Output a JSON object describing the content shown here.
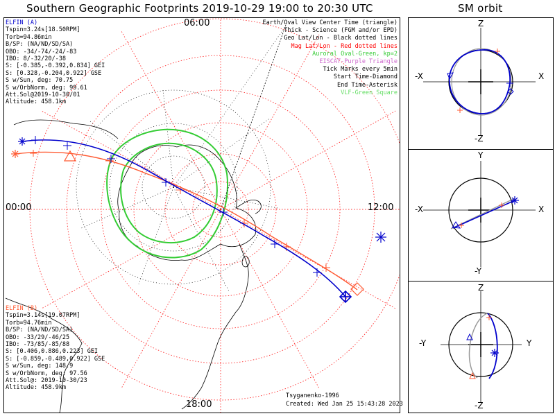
{
  "title": "Southern Geographic Footprints 2019-10-29 19:00 to 20:30 UTC",
  "orbit_title": "SM orbit",
  "time_labels": {
    "top": "06:00",
    "left": "00:00",
    "right": "12:00",
    "bottom": "18:00"
  },
  "elfin_a": {
    "name": "ELFIN (A)",
    "color": "#0000cc",
    "lines": [
      "Tspin=3.24s[18.50RPM]",
      "Torb=94.86min",
      "B/SP: (NA/ND/SD/SA)",
      "OBO: -34/-74/-24/-83",
      "IBO: 8/-32/20/-38",
      "S: [-0.385,-0.392,0.834] GEI",
      "S: [0.328,-0.204,0.922] GSE",
      "S w/Sun, deg: 70.75",
      "S w/OrbNorm, deg: 99.61",
      "Att.Sol@2019-10-30/01",
      "Altitude: 458.1km"
    ]
  },
  "elfin_b": {
    "name": "ELFIN (B)",
    "color": "#ff5a32",
    "lines": [
      "Tspin=3.14s[19.07RPM]",
      "Torb=94.76min",
      "B/SP: (NA/ND/SD/SA)",
      "OBO: -33/29/-46/25",
      "IBO: -73/85/-85/88",
      "S: [0.406,0.886,0.223] GEI",
      "S: [-0.859,-0.489,0.922] GSE",
      "S w/Sun, deg: 148.9",
      "S w/OrbNorm, deg: 97.56",
      "Att.Sol@: 2019-10-30/23",
      "Altitude: 458.9km"
    ]
  },
  "legend": [
    {
      "text": "Earth/Oval View Center Time (triangle)",
      "color": "#000000"
    },
    {
      "text": "Thick - Science (FGM and/or EPD)",
      "color": "#000000"
    },
    {
      "text": "Geo Lat/Lon - Black dotted lines",
      "color": "#000000"
    },
    {
      "text": "Mag Lat/Lon - Red dotted lines",
      "color": "#ff0000"
    },
    {
      "text": "Auroral Oval-Green, kp=2",
      "color": "#33cc33"
    },
    {
      "text": "EISCAT-Purple Triangle",
      "color": "#cc66cc"
    },
    {
      "text": "Tick Marks every 5min",
      "color": "#000000"
    },
    {
      "text": "Start Time-Diamond",
      "color": "#000000"
    },
    {
      "text": "End Time-Asterisk",
      "color": "#000000"
    },
    {
      "text": "VLF-Green Square",
      "color": "#66dd66"
    }
  ],
  "credits": {
    "author": "Tsyganenko-1996",
    "created": "Created: Wed Jan 25 15:43:28 2023"
  },
  "panels": {
    "xz": {
      "top": "Z",
      "bottom": "-Z",
      "left": "-X",
      "right": "X"
    },
    "xy": {
      "top": "Y",
      "bottom": "-Y",
      "left": "-X",
      "right": "X"
    },
    "yz": {
      "top": "Z",
      "bottom": "-Z",
      "left": "-Y",
      "right": "Y"
    }
  }
}
